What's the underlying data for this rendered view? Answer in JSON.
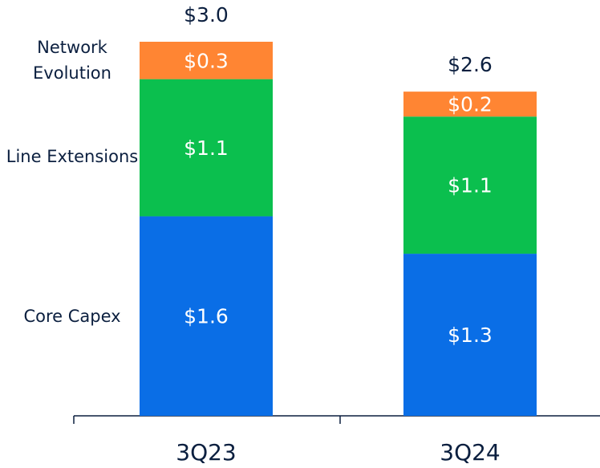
{
  "chart_data": {
    "type": "stacked_bar",
    "categories": [
      "3Q23",
      "3Q24"
    ],
    "series": [
      {
        "name": "Core Capex",
        "color": "#0a6ee6",
        "values": [
          1.6,
          1.3
        ],
        "value_labels": [
          "$1.6",
          "$1.3"
        ]
      },
      {
        "name": "Line Extensions",
        "color": "#0bbf4e",
        "values": [
          1.1,
          1.1
        ],
        "value_labels": [
          "$1.1",
          "$1.1"
        ]
      },
      {
        "name": "Network Evolution",
        "color": "#ff8533",
        "values": [
          0.3,
          0.2
        ],
        "value_labels": [
          "$0.3",
          "$0.2"
        ]
      }
    ],
    "totals": [
      3.0,
      2.6
    ],
    "total_labels": [
      "$3.0",
      "$2.6"
    ]
  }
}
